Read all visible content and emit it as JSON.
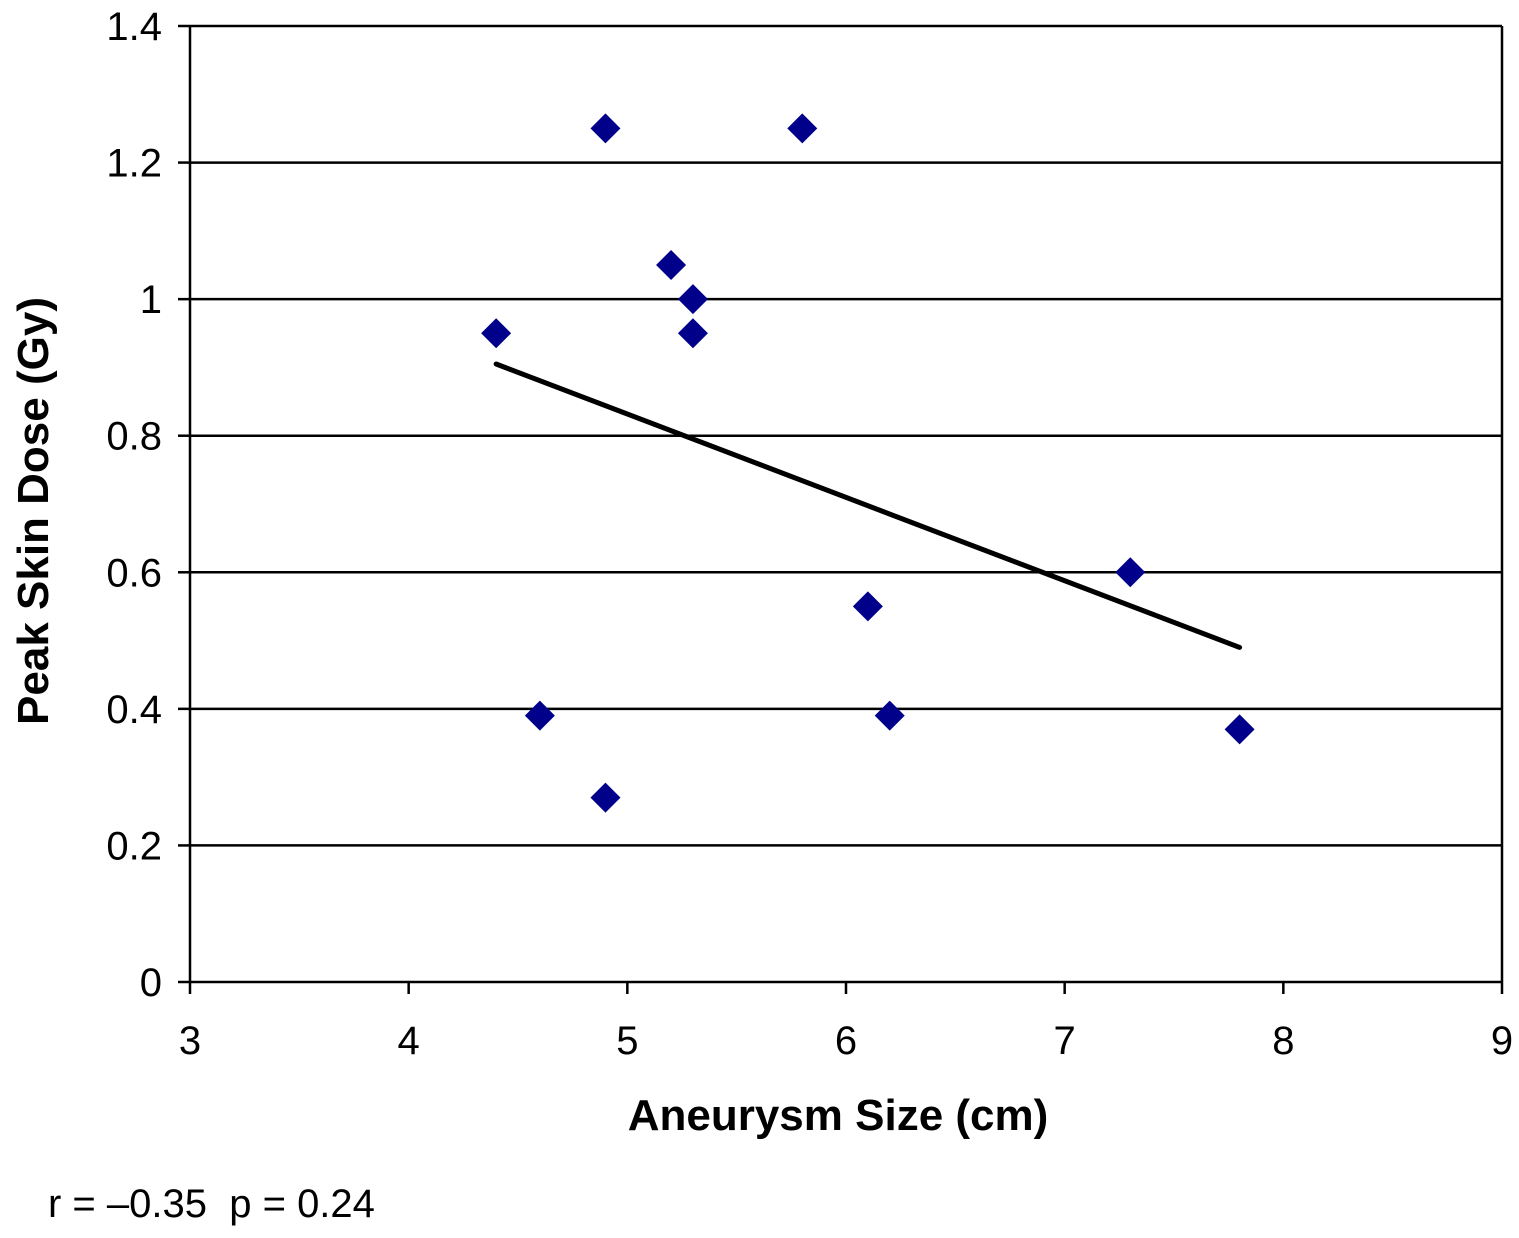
{
  "chart_data": {
    "type": "scatter",
    "title": "",
    "xlabel": "Aneurysm Size (cm)",
    "ylabel": "Peak Skin Dose (Gy)",
    "xlim": [
      3,
      9
    ],
    "ylim": [
      0,
      1.4
    ],
    "xticks": [
      "3",
      "4",
      "5",
      "6",
      "7",
      "8",
      "9"
    ],
    "yticks": [
      "0",
      "0.2",
      "0.4",
      "0.6",
      "0.8",
      "1",
      "1.2",
      "1.4"
    ],
    "grid": "horizontal",
    "marker": "diamond",
    "colors": {
      "marker": "#00008B",
      "trendline": "#000000",
      "grid": "#000000"
    },
    "points": [
      {
        "x": 4.4,
        "y": 0.95
      },
      {
        "x": 4.6,
        "y": 0.39
      },
      {
        "x": 4.9,
        "y": 1.25
      },
      {
        "x": 4.9,
        "y": 0.27
      },
      {
        "x": 5.2,
        "y": 1.05
      },
      {
        "x": 5.3,
        "y": 1.0
      },
      {
        "x": 5.3,
        "y": 0.95
      },
      {
        "x": 5.8,
        "y": 1.25
      },
      {
        "x": 6.1,
        "y": 0.55
      },
      {
        "x": 6.2,
        "y": 0.39
      },
      {
        "x": 7.3,
        "y": 0.6
      },
      {
        "x": 7.8,
        "y": 0.37
      }
    ],
    "trendline": {
      "x": [
        4.4,
        7.8
      ],
      "y": [
        0.905,
        0.49
      ]
    }
  },
  "stats_text": "r = –0.35  p = 0.24"
}
